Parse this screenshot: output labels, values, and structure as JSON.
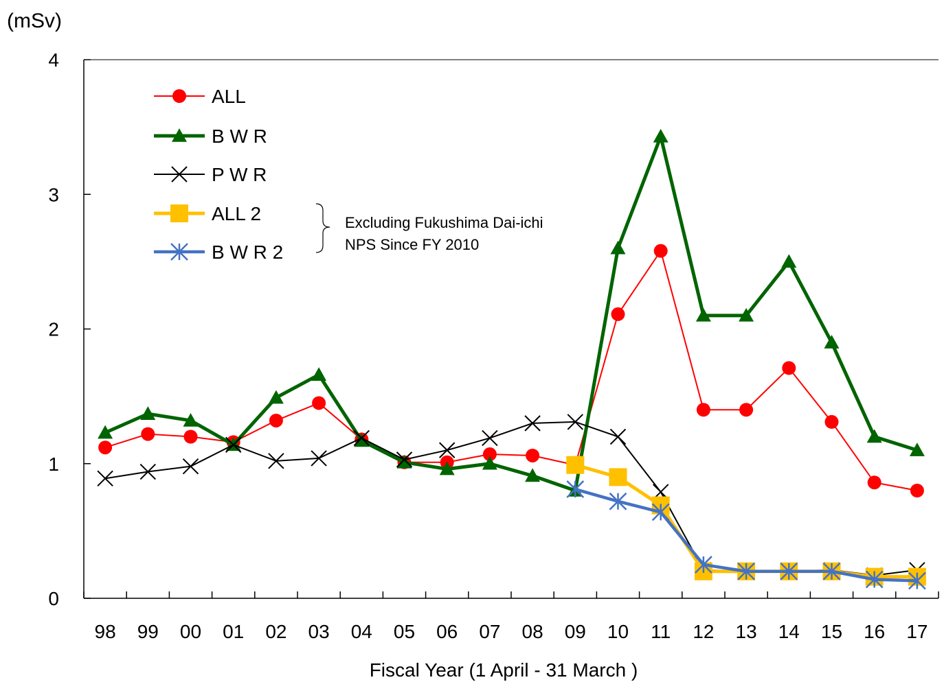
{
  "chart_data": {
    "type": "line",
    "unit_label": "(mSv)",
    "xlabel": "Fiscal Year (1 April - 31 March )",
    "ylim": [
      0,
      4
    ],
    "yticks": [
      "0",
      "1",
      "2",
      "3",
      "4"
    ],
    "categories": [
      "98",
      "99",
      "00",
      "01",
      "02",
      "03",
      "04",
      "05",
      "06",
      "07",
      "08",
      "09",
      "10",
      "11",
      "12",
      "13",
      "14",
      "15",
      "16",
      "17"
    ],
    "grid": false,
    "legend_position": "top-left",
    "legend_note": [
      "Excluding Fukushima Dai-ichi",
      "NPS Since FY 2010"
    ],
    "series": [
      {
        "name": "ALL",
        "color": "#ff0000",
        "marker": "circle",
        "values": [
          1.12,
          1.22,
          1.2,
          1.16,
          1.32,
          1.45,
          1.18,
          1.01,
          1.01,
          1.07,
          1.06,
          0.99,
          2.11,
          2.58,
          1.4,
          1.4,
          1.71,
          1.31,
          0.86,
          0.8
        ]
      },
      {
        "name": "B W R",
        "color": "#006400",
        "marker": "triangle",
        "values": [
          1.23,
          1.37,
          1.32,
          1.14,
          1.49,
          1.66,
          1.17,
          1.01,
          0.96,
          1.0,
          0.91,
          0.8,
          2.6,
          3.43,
          2.1,
          2.1,
          2.5,
          1.9,
          1.2,
          1.1
        ]
      },
      {
        "name": "P W R",
        "color": "#000000",
        "marker": "x",
        "values": [
          0.89,
          0.94,
          0.98,
          1.14,
          1.02,
          1.04,
          1.19,
          1.03,
          1.1,
          1.19,
          1.3,
          1.31,
          1.2,
          0.79,
          0.21,
          0.2,
          0.2,
          0.21,
          0.17,
          0.21
        ]
      },
      {
        "name": "ALL 2",
        "color": "#ffc000",
        "marker": "square",
        "values": [
          null,
          null,
          null,
          null,
          null,
          null,
          null,
          null,
          null,
          null,
          null,
          0.99,
          0.9,
          0.69,
          0.2,
          0.2,
          0.2,
          0.2,
          0.16,
          0.16
        ]
      },
      {
        "name": "B W R  2",
        "color": "#4472c4",
        "marker": "asterisk",
        "values": [
          null,
          null,
          null,
          null,
          null,
          null,
          null,
          null,
          null,
          null,
          null,
          0.81,
          0.72,
          0.64,
          0.25,
          0.2,
          0.2,
          0.2,
          0.14,
          0.13
        ]
      }
    ]
  }
}
